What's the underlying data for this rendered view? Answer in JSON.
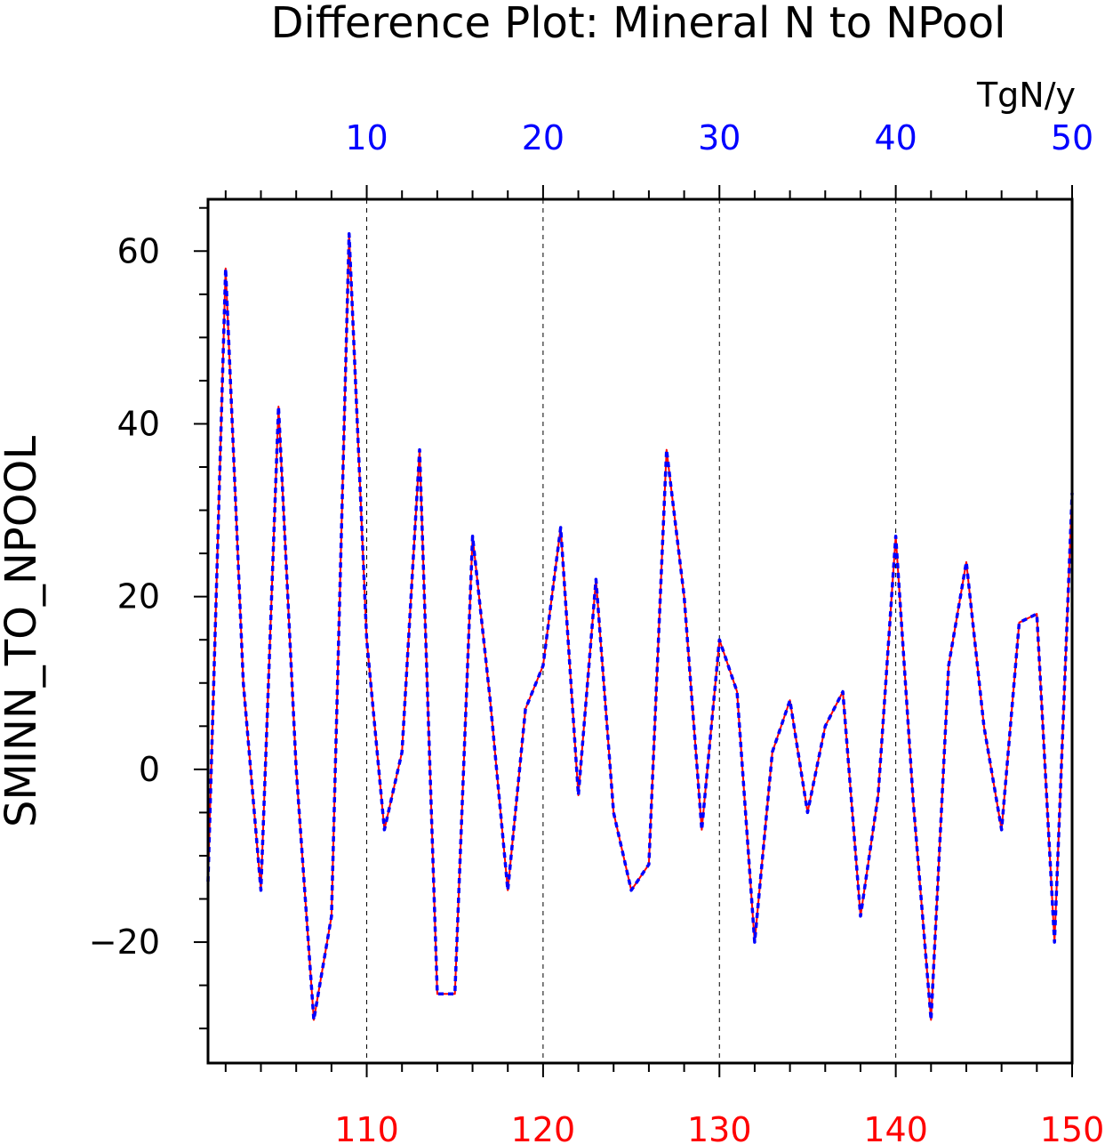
{
  "colors": {
    "bottom_axis": "#ff0000",
    "top_axis": "#0000ff",
    "series_solid": "#ff0000",
    "series_dashed": "#0000ff",
    "axes": "#000000"
  },
  "chart_data": {
    "type": "line",
    "title": "Difference Plot: Mineral N to NPool",
    "ylabel": "SMINN_TO_NPOOL",
    "units": "TgN/y",
    "xlim": [
      101,
      150
    ],
    "ylim": [
      -34,
      66
    ],
    "grid": "vertical dashed at top-axis major ticks",
    "bottom_axis": {
      "range": [
        101,
        150
      ],
      "ticks": [
        110,
        120,
        130,
        140,
        150
      ],
      "tick_labels": [
        "110",
        "120",
        "130",
        "140",
        "150"
      ]
    },
    "top_axis": {
      "range": [
        1,
        50
      ],
      "ticks": [
        10,
        20,
        30,
        40,
        50
      ],
      "tick_labels": [
        "10",
        "20",
        "30",
        "40",
        "50"
      ]
    },
    "left_axis": {
      "ticks": [
        -20,
        0,
        20,
        40,
        60
      ],
      "tick_labels": [
        "−20",
        "0",
        "20",
        "40",
        "60"
      ]
    },
    "x": [
      101,
      102,
      103,
      104,
      105,
      106,
      107,
      108,
      109,
      110,
      111,
      112,
      113,
      114,
      115,
      116,
      117,
      118,
      119,
      120,
      121,
      122,
      123,
      124,
      125,
      126,
      127,
      128,
      129,
      130,
      131,
      132,
      133,
      134,
      135,
      136,
      137,
      138,
      139,
      140,
      141,
      142,
      143,
      144,
      145,
      146,
      147,
      148,
      149,
      150
    ],
    "series": [
      {
        "axis": "bottom",
        "style": "solid",
        "values": [
          -13,
          58,
          10,
          -14,
          42,
          0,
          -29,
          -17,
          62,
          15,
          -7,
          2,
          37,
          -26,
          -26,
          27,
          8,
          -14,
          7,
          12,
          28,
          -3,
          22,
          -5,
          -14,
          -11,
          37,
          20,
          -7,
          15,
          9,
          -20,
          2,
          8,
          -5,
          5,
          9,
          -17,
          -3,
          27,
          -4,
          -29,
          12,
          24,
          5,
          -7,
          17,
          18,
          -20,
          32
        ]
      },
      {
        "axis": "top",
        "style": "dashed",
        "values": [
          -13,
          58,
          10,
          -14,
          42,
          0,
          -29,
          -17,
          62,
          15,
          -7,
          2,
          37,
          -26,
          -26,
          27,
          8,
          -14,
          7,
          12,
          28,
          -3,
          22,
          -5,
          -14,
          -11,
          37,
          20,
          -7,
          15,
          9,
          -20,
          2,
          8,
          -5,
          5,
          9,
          -17,
          -3,
          27,
          -4,
          -29,
          12,
          24,
          5,
          -7,
          17,
          18,
          -20,
          32
        ]
      }
    ]
  }
}
